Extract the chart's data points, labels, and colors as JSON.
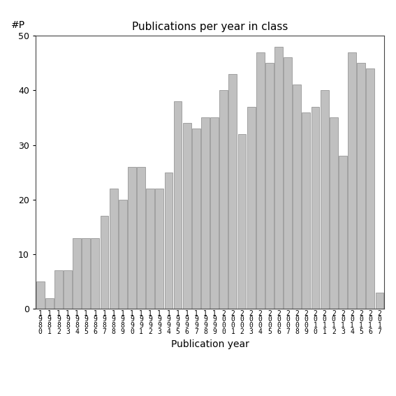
{
  "title": "Publications per year in class",
  "xlabel": "Publication year",
  "ylabel": "#P",
  "bar_color": "#c0c0c0",
  "bar_edgecolor": "#888888",
  "years": [
    "1980",
    "1981",
    "1982",
    "1983",
    "1984",
    "1985",
    "1986",
    "1987",
    "1988",
    "1989",
    "1990",
    "1991",
    "1992",
    "1993",
    "1994",
    "1995",
    "1996",
    "1997",
    "1998",
    "1999",
    "2000",
    "2001",
    "2002",
    "2003",
    "2004",
    "2005",
    "2006",
    "2007",
    "2008",
    "2009",
    "2010",
    "2011",
    "2012",
    "2013",
    "2014",
    "2015",
    "2016",
    "2017"
  ],
  "values": [
    5,
    2,
    7,
    7,
    13,
    13,
    13,
    17,
    22,
    20,
    26,
    26,
    22,
    22,
    25,
    38,
    34,
    33,
    35,
    35,
    40,
    43,
    32,
    37,
    47,
    45,
    48,
    46,
    41,
    36,
    37,
    40,
    35,
    28,
    47,
    45,
    44,
    3
  ],
  "ylim": [
    0,
    50
  ],
  "yticks": [
    0,
    10,
    20,
    30,
    40,
    50
  ],
  "background_color": "#ffffff",
  "title_fontsize": 11,
  "xlabel_fontsize": 10,
  "ylabel_fontsize": 10,
  "tick_fontsize": 9,
  "xtick_fontsize": 7
}
